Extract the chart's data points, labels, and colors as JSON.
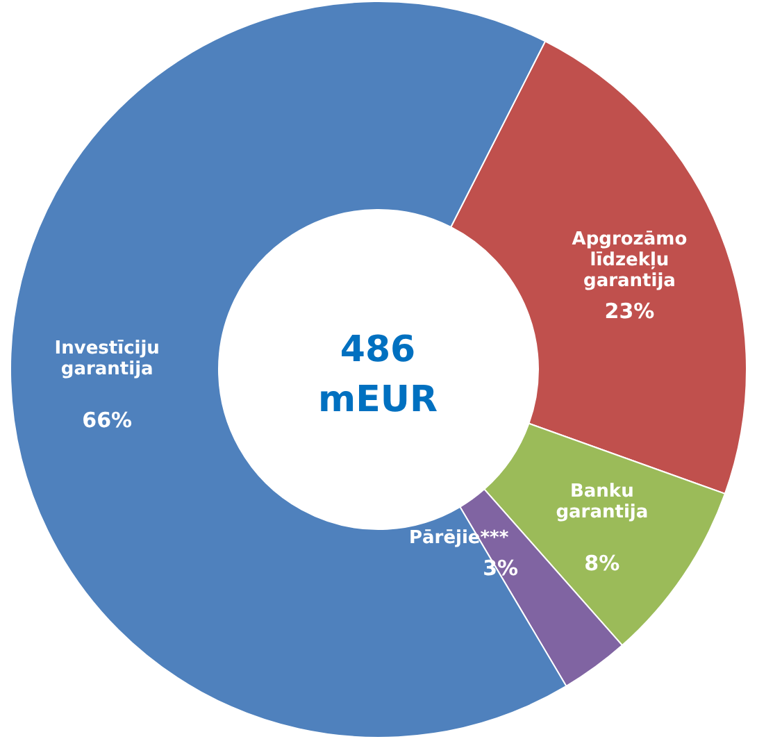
{
  "chart_data": {
    "type": "donut",
    "categories": [
      "Apgrozāmo līdzekļu garantija",
      "Banku garantija",
      "Pārējie***",
      "Investīciju garantija"
    ],
    "values": [
      23,
      8,
      3,
      66
    ],
    "colors": [
      "#c0504d",
      "#9bbb59",
      "#8064a2",
      "#4f81bd"
    ],
    "value_labels": [
      "23%",
      "8%",
      "3%",
      "66%"
    ],
    "annotations": [
      "486 mEUR"
    ]
  }
}
